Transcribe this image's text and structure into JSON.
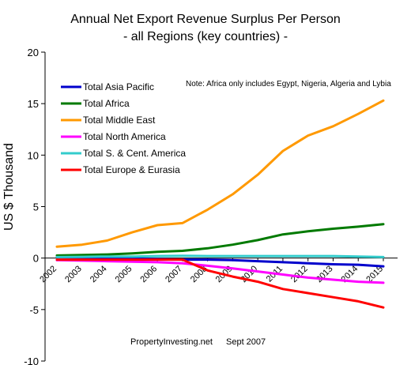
{
  "chart_data": {
    "type": "line",
    "title": "Annual Net Export Revenue Surplus Per Person",
    "subtitle": "-  all Regions (key countries) -",
    "ylabel": "US $ Thousand",
    "xlabel": "",
    "ylim": [
      -10,
      20
    ],
    "ytick_step": 5,
    "yticks": [
      "20",
      "15",
      "10",
      "5",
      "0",
      "-5",
      "-10"
    ],
    "x": [
      "2002",
      "2003",
      "2004",
      "2005",
      "2006",
      "2007",
      "2008",
      "2009",
      "2010",
      "2011",
      "2012",
      "2013",
      "2014",
      "2015"
    ],
    "grid": false,
    "legend_position": "top-left",
    "series": [
      {
        "name": "Total Asia Pacific",
        "color": "#0000cc",
        "values": [
          0.1,
          0.05,
          0.0,
          -0.05,
          -0.1,
          -0.15,
          -0.15,
          -0.2,
          -0.3,
          -0.4,
          -0.5,
          -0.6,
          -0.65,
          -0.8
        ]
      },
      {
        "name": "Total Africa",
        "color": "#007a00",
        "values": [
          0.25,
          0.3,
          0.35,
          0.45,
          0.6,
          0.7,
          0.95,
          1.3,
          1.75,
          2.3,
          2.6,
          2.85,
          3.05,
          3.3
        ]
      },
      {
        "name": "Total Middle East",
        "color": "#ff9900",
        "values": [
          1.1,
          1.3,
          1.7,
          2.5,
          3.2,
          3.4,
          4.7,
          6.2,
          8.1,
          10.4,
          11.9,
          12.8,
          14.0,
          15.3
        ]
      },
      {
        "name": "Total North America",
        "color": "#ff00ff",
        "values": [
          -0.2,
          -0.25,
          -0.3,
          -0.35,
          -0.4,
          -0.5,
          -0.75,
          -1.0,
          -1.3,
          -1.6,
          -1.9,
          -2.1,
          -2.3,
          -2.4
        ]
      },
      {
        "name": "Total S. & Cent. America",
        "color": "#33cccc",
        "values": [
          0.1,
          0.12,
          0.15,
          0.15,
          0.2,
          0.22,
          0.2,
          0.2,
          0.2,
          0.2,
          0.2,
          0.2,
          0.15,
          0.1
        ]
      },
      {
        "name": "Total Europe & Eurasia",
        "color": "#ff0000",
        "values": [
          -0.15,
          -0.15,
          -0.15,
          -0.15,
          -0.15,
          -0.15,
          -1.2,
          -1.8,
          -2.3,
          -3.0,
          -3.4,
          -3.8,
          -4.2,
          -4.8
        ]
      }
    ],
    "annotations": {
      "note": "Note: Africa only includes Egypt, Nigeria, Algeria and Lybia",
      "source": "PropertyInvesting.net",
      "date": "Sept 2007"
    }
  }
}
